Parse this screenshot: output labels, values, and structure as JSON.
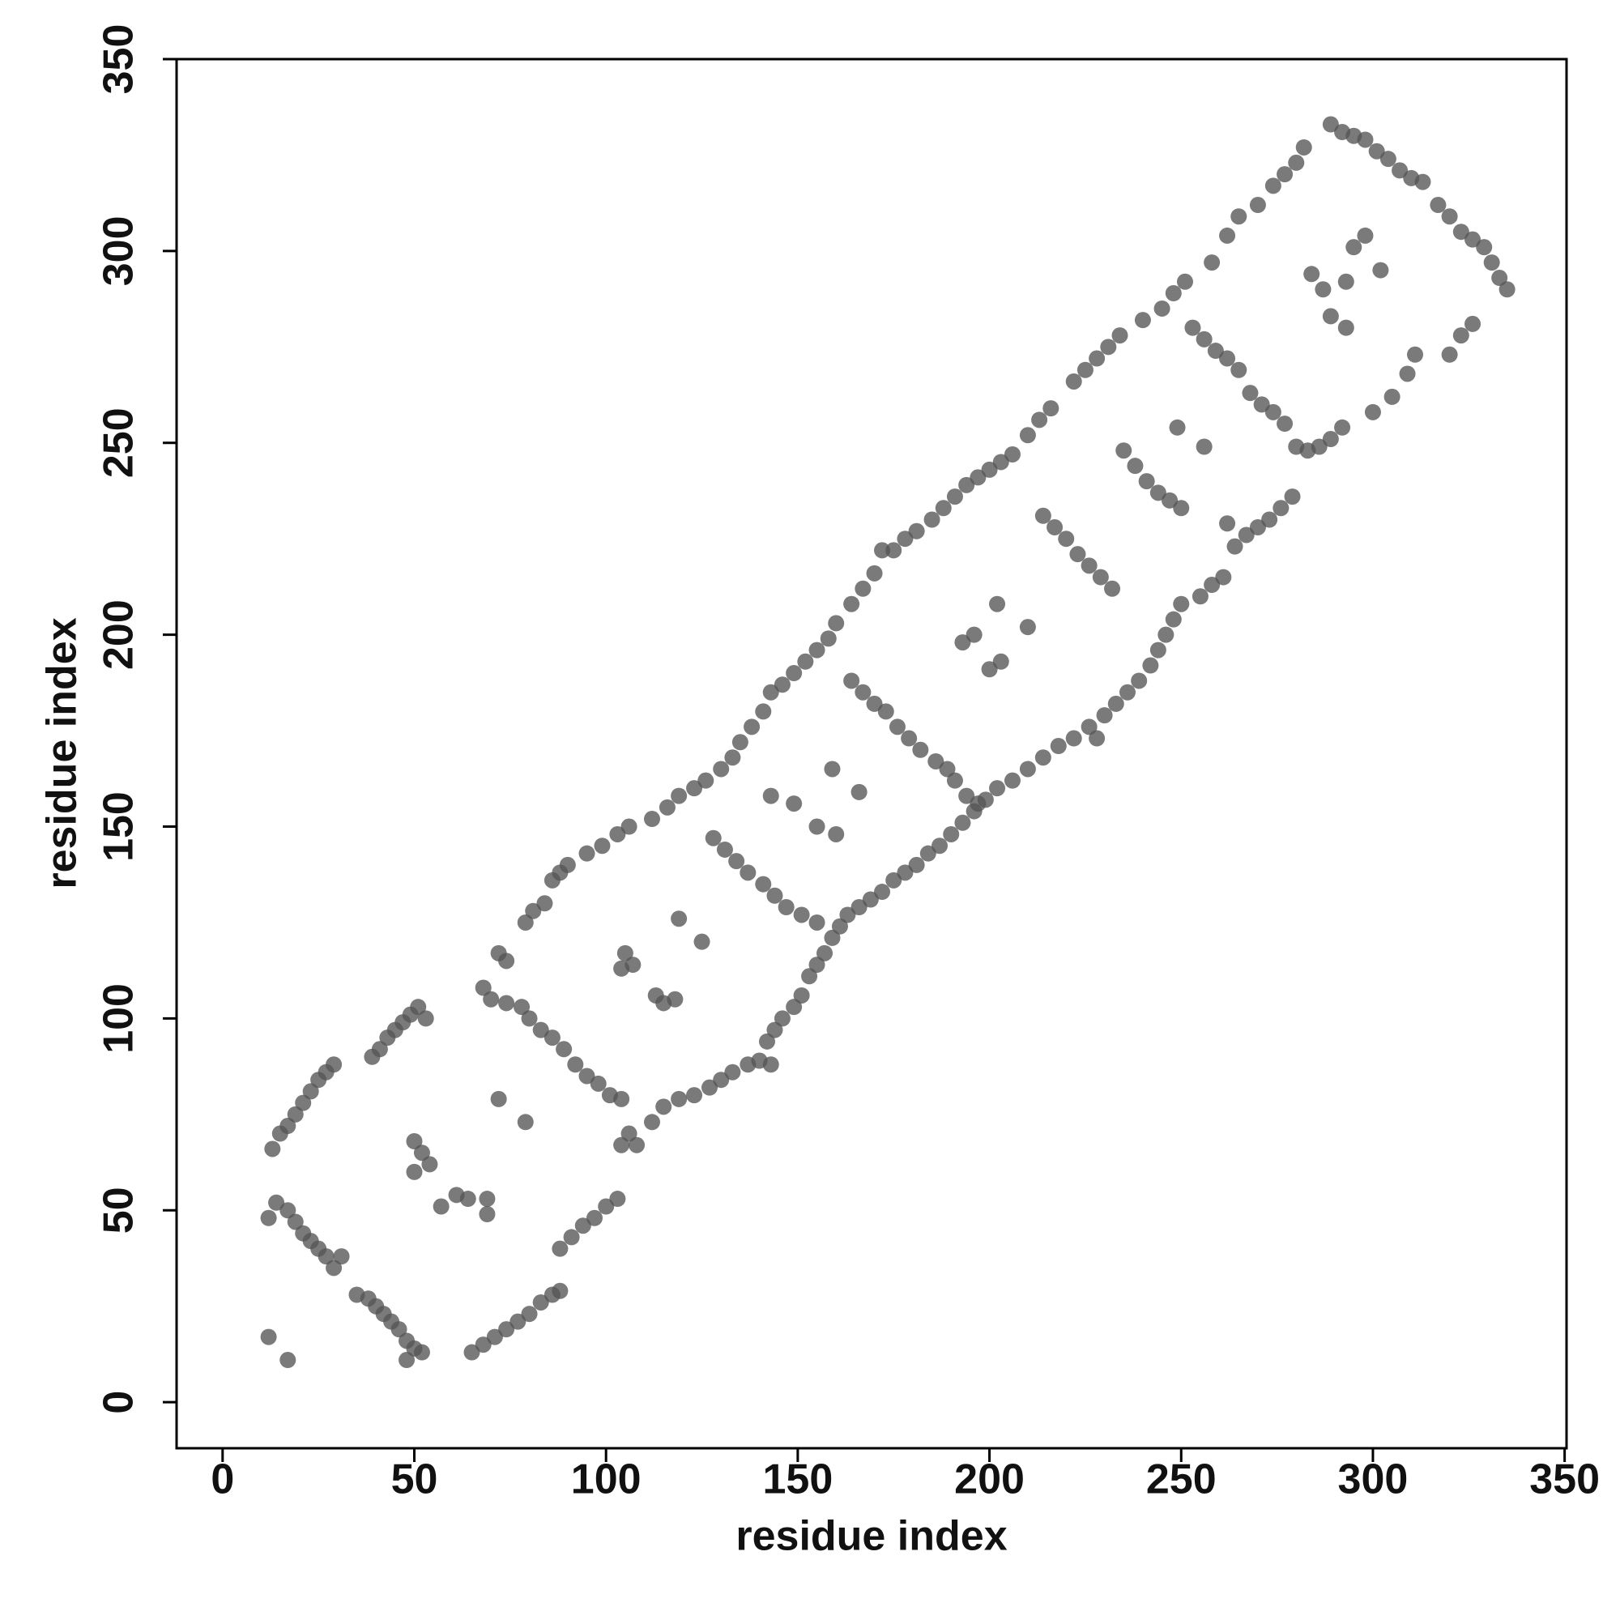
{
  "chart_data": {
    "type": "scatter",
    "xlabel": "residue index",
    "ylabel": "residue index",
    "color": "#555555",
    "xlim": [
      -12,
      350.5
    ],
    "ylim": [
      -12,
      350
    ],
    "xticks": [
      0,
      50,
      100,
      150,
      200,
      250,
      300,
      350
    ],
    "yticks": [
      0,
      50,
      100,
      150,
      200,
      250,
      300,
      350
    ],
    "x": [
      12,
      14,
      17,
      19,
      21,
      23,
      25,
      27,
      29,
      31,
      35,
      38,
      40,
      42,
      44,
      46,
      48,
      50,
      52,
      48,
      13,
      15,
      17,
      19,
      21,
      23,
      25,
      27,
      29,
      39,
      41,
      43,
      45,
      47,
      49,
      51,
      53,
      12,
      17,
      65,
      68,
      71,
      74,
      77,
      80,
      83,
      86,
      88,
      88,
      91,
      94,
      97,
      100,
      103,
      50,
      52,
      54,
      50,
      57,
      61,
      64,
      69,
      69,
      72,
      79,
      68,
      70,
      74,
      72,
      74,
      78,
      80,
      83,
      86,
      89,
      92,
      95,
      98,
      101,
      104,
      106,
      104,
      108,
      79,
      81,
      84,
      86,
      88,
      90,
      95,
      99,
      103,
      106,
      105,
      104,
      107,
      113,
      115,
      118,
      119,
      125,
      112,
      115,
      119,
      123,
      127,
      130,
      133,
      137,
      140,
      143,
      142,
      144,
      146,
      149,
      151,
      153,
      155,
      157,
      159,
      161,
      163,
      166,
      169,
      172,
      175,
      178,
      181,
      184,
      187,
      190,
      193,
      196,
      199,
      202,
      206,
      210,
      214,
      218,
      222,
      226,
      228,
      230,
      233,
      236,
      239,
      242,
      244,
      246,
      248,
      250,
      112,
      116,
      119,
      123,
      126,
      130,
      133,
      135,
      138,
      141,
      143,
      146,
      149,
      152,
      155,
      158,
      160,
      164,
      167,
      170,
      172,
      175,
      178,
      181,
      185,
      188,
      191,
      194,
      197,
      200,
      203,
      206,
      210,
      213,
      216,
      222,
      225,
      228,
      231,
      234,
      240,
      245,
      248,
      251,
      258,
      262,
      265,
      270,
      274,
      277,
      280,
      282,
      289,
      292,
      295,
      298,
      301,
      304,
      307,
      310,
      313,
      317,
      320,
      323,
      326,
      329,
      331,
      333,
      335,
      128,
      131,
      134,
      137,
      141,
      144,
      147,
      151,
      155,
      164,
      167,
      170,
      173,
      176,
      179,
      182,
      186,
      189,
      191,
      194,
      197,
      143,
      149,
      155,
      160,
      159,
      166,
      193,
      196,
      202,
      200,
      203,
      210,
      214,
      217,
      220,
      223,
      226,
      229,
      232,
      235,
      238,
      241,
      244,
      247,
      250,
      249,
      256,
      253,
      256,
      259,
      262,
      265,
      268,
      271,
      274,
      277,
      280,
      283,
      286,
      289,
      292,
      262,
      264,
      267,
      270,
      273,
      276,
      279,
      255,
      258,
      261,
      284,
      287,
      293,
      295,
      298,
      289,
      293,
      302,
      305,
      309,
      311,
      320,
      323,
      326,
      300
    ],
    "values": [
      48,
      52,
      50,
      47,
      44,
      42,
      40,
      38,
      35,
      38,
      28,
      27,
      25,
      23,
      21,
      19,
      16,
      14,
      13,
      11,
      66,
      70,
      72,
      75,
      78,
      81,
      84,
      86,
      88,
      90,
      92,
      95,
      97,
      99,
      101,
      103,
      100,
      17,
      11,
      13,
      15,
      17,
      19,
      21,
      23,
      26,
      28,
      29,
      40,
      43,
      46,
      48,
      51,
      53,
      68,
      65,
      62,
      60,
      51,
      54,
      53,
      53,
      49,
      79,
      73,
      108,
      105,
      104,
      117,
      115,
      103,
      100,
      97,
      95,
      92,
      88,
      85,
      83,
      80,
      79,
      70,
      67,
      67,
      125,
      128,
      130,
      136,
      138,
      140,
      143,
      145,
      148,
      150,
      117,
      113,
      114,
      106,
      104,
      105,
      126,
      120,
      73,
      77,
      79,
      80,
      82,
      84,
      86,
      88,
      89,
      88,
      94,
      97,
      100,
      103,
      106,
      111,
      114,
      117,
      121,
      124,
      127,
      129,
      131,
      133,
      136,
      138,
      140,
      143,
      145,
      148,
      151,
      154,
      157,
      160,
      162,
      165,
      168,
      171,
      173,
      176,
      173,
      179,
      182,
      185,
      188,
      192,
      196,
      200,
      204,
      208,
      152,
      155,
      158,
      160,
      162,
      165,
      168,
      172,
      176,
      180,
      185,
      187,
      190,
      193,
      196,
      199,
      203,
      208,
      212,
      216,
      222,
      222,
      225,
      227,
      230,
      233,
      236,
      239,
      241,
      243,
      245,
      247,
      252,
      256,
      259,
      266,
      269,
      272,
      275,
      278,
      282,
      285,
      289,
      292,
      297,
      304,
      309,
      312,
      317,
      320,
      323,
      327,
      333,
      331,
      330,
      329,
      326,
      324,
      321,
      319,
      318,
      312,
      309,
      305,
      303,
      301,
      297,
      293,
      290,
      147,
      144,
      141,
      138,
      135,
      132,
      129,
      127,
      125,
      188,
      185,
      182,
      180,
      176,
      173,
      170,
      167,
      165,
      162,
      158,
      156,
      158,
      156,
      150,
      148,
      165,
      159,
      198,
      200,
      208,
      191,
      193,
      202,
      231,
      228,
      225,
      221,
      218,
      215,
      212,
      248,
      244,
      240,
      237,
      235,
      233,
      254,
      249,
      280,
      277,
      274,
      272,
      269,
      263,
      260,
      258,
      255,
      249,
      248,
      249,
      251,
      254,
      229,
      223,
      226,
      228,
      230,
      233,
      236,
      210,
      213,
      215,
      294,
      290,
      292,
      301,
      304,
      283,
      280,
      295,
      262,
      268,
      273,
      273,
      278,
      281,
      258
    ]
  }
}
